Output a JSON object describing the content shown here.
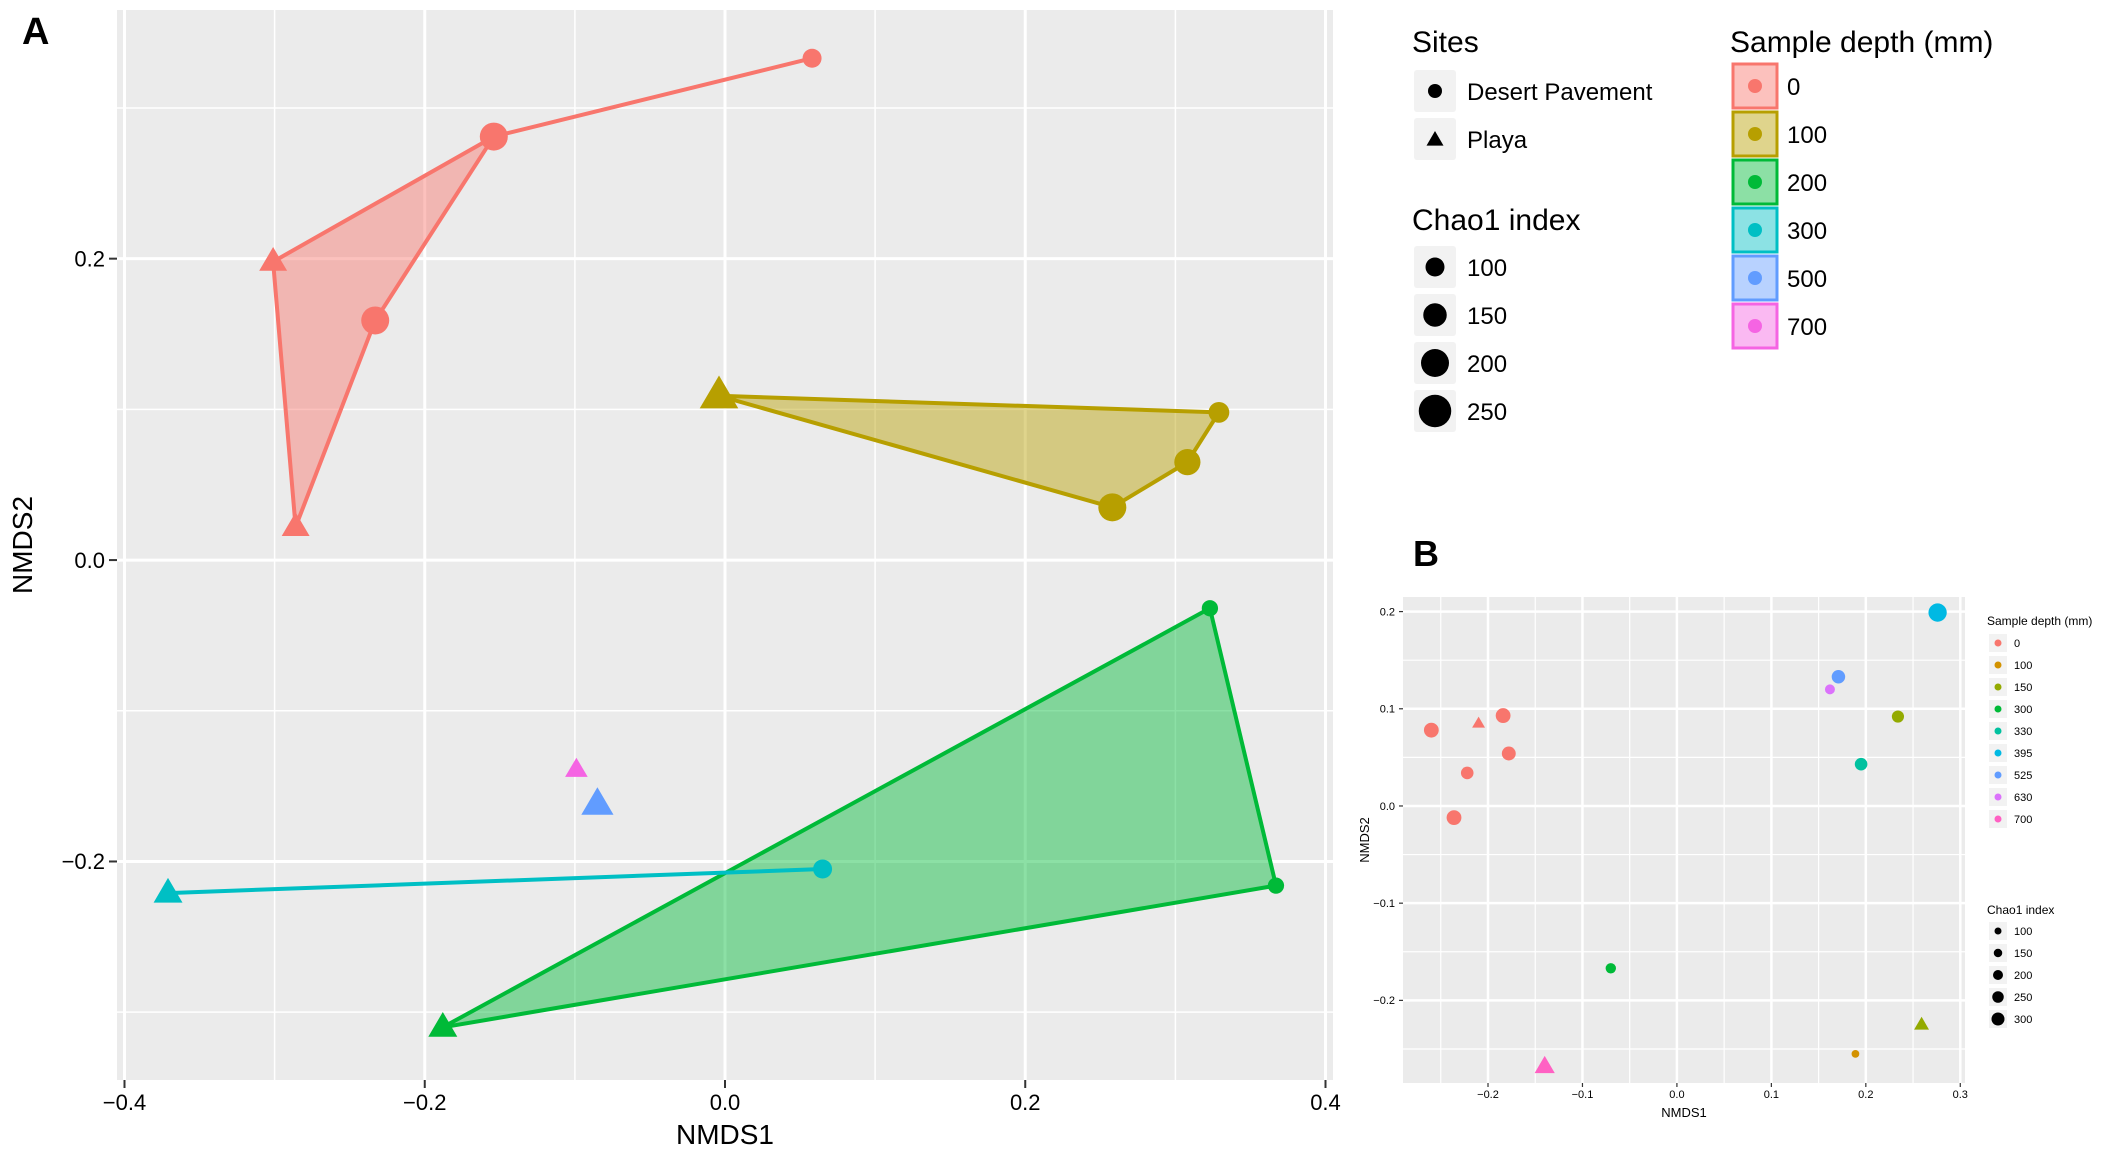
{
  "panel_a": {
    "letter": "A",
    "legend": {
      "sites_title": "Sites",
      "sites": [
        {
          "label": "Desert Pavement",
          "shape": "circle"
        },
        {
          "label": "Playa",
          "shape": "triangle"
        }
      ],
      "chao_title": "Chao1 index",
      "chao": [
        {
          "label": "100",
          "value": 100
        },
        {
          "label": "150",
          "value": 150
        },
        {
          "label": "200",
          "value": 200
        },
        {
          "label": "250",
          "value": 250
        }
      ],
      "depth_title": "Sample depth (mm)",
      "depths": [
        {
          "label": "0",
          "color": "#F8766D"
        },
        {
          "label": "100",
          "color": "#B79F00"
        },
        {
          "label": "200",
          "color": "#00BA38"
        },
        {
          "label": "300",
          "color": "#00BFC4"
        },
        {
          "label": "500",
          "color": "#619CFF"
        },
        {
          "label": "700",
          "color": "#F564E3"
        }
      ]
    }
  },
  "panel_b": {
    "letter": "B",
    "legend": {
      "depth_title": "Sample depth (mm)",
      "depths": [
        {
          "label": "0",
          "color": "#F8766D"
        },
        {
          "label": "100",
          "color": "#D39200"
        },
        {
          "label": "150",
          "color": "#93AA00"
        },
        {
          "label": "300",
          "color": "#00BA38"
        },
        {
          "label": "330",
          "color": "#00C19F"
        },
        {
          "label": "395",
          "color": "#00B9E3"
        },
        {
          "label": "525",
          "color": "#619CFF"
        },
        {
          "label": "630",
          "color": "#DB72FB"
        },
        {
          "label": "700",
          "color": "#FF61C3"
        }
      ],
      "chao_title": "Chao1 index",
      "chao": [
        {
          "label": "100",
          "value": 100
        },
        {
          "label": "150",
          "value": 150
        },
        {
          "label": "200",
          "value": 200
        },
        {
          "label": "250",
          "value": 250
        },
        {
          "label": "300",
          "value": 300
        }
      ]
    }
  },
  "chart_data": [
    {
      "panel": "A",
      "type": "scatter",
      "xlabel": "NMDS1",
      "ylabel": "NMDS2",
      "xlim": [
        -0.405,
        0.405
      ],
      "ylim": [
        -0.345,
        0.365
      ],
      "xticks": [
        -0.4,
        -0.2,
        0.0,
        0.2,
        0.4
      ],
      "xtick_labels": [
        "−0.4",
        "−0.2",
        "0.0",
        "0.2",
        "0.4"
      ],
      "yticks": [
        -0.2,
        0.0,
        0.2
      ],
      "ytick_labels": [
        "−0.2",
        "0.0",
        "0.2"
      ],
      "hulls": [
        {
          "depth": "0",
          "color": "#F8766D",
          "filled": true,
          "points": [
            [
              0.058,
              0.333
            ],
            [
              -0.154,
              0.281
            ],
            [
              -0.301,
              0.198
            ],
            [
              -0.286,
              0.022
            ],
            [
              -0.233,
              0.159
            ],
            [
              -0.154,
              0.281
            ]
          ]
        },
        {
          "depth": "100",
          "color": "#B79F00",
          "filled": true,
          "points": [
            [
              -0.004,
              0.109
            ],
            [
              0.329,
              0.098
            ],
            [
              0.308,
              0.065
            ],
            [
              0.258,
              0.035
            ]
          ]
        },
        {
          "depth": "200",
          "color": "#00BA38",
          "filled": true,
          "points": [
            [
              0.323,
              -0.032
            ],
            [
              0.367,
              -0.216
            ],
            [
              -0.188,
              -0.31
            ]
          ]
        },
        {
          "depth": "300",
          "color": "#00BFC4",
          "filled": false,
          "points": [
            [
              -0.371,
              -0.221
            ],
            [
              0.065,
              -0.205
            ]
          ]
        }
      ],
      "points": [
        {
          "x": 0.058,
          "y": 0.333,
          "depth": "0",
          "site": "Desert Pavement",
          "chao1": 100
        },
        {
          "x": -0.154,
          "y": 0.281,
          "depth": "0",
          "site": "Desert Pavement",
          "chao1": 200
        },
        {
          "x": -0.233,
          "y": 0.159,
          "depth": "0",
          "site": "Desert Pavement",
          "chao1": 200
        },
        {
          "x": -0.301,
          "y": 0.198,
          "depth": "0",
          "site": "Playa",
          "chao1": 150
        },
        {
          "x": -0.286,
          "y": 0.022,
          "depth": "0",
          "site": "Playa",
          "chao1": 150
        },
        {
          "x": -0.004,
          "y": 0.109,
          "depth": "100",
          "site": "Playa",
          "chao1": 250
        },
        {
          "x": 0.329,
          "y": 0.098,
          "depth": "100",
          "site": "Desert Pavement",
          "chao1": 120
        },
        {
          "x": 0.308,
          "y": 0.065,
          "depth": "100",
          "site": "Desert Pavement",
          "chao1": 180
        },
        {
          "x": 0.258,
          "y": 0.035,
          "depth": "100",
          "site": "Desert Pavement",
          "chao1": 200
        },
        {
          "x": 0.323,
          "y": -0.032,
          "depth": "200",
          "site": "Desert Pavement",
          "chao1": 70
        },
        {
          "x": 0.367,
          "y": -0.216,
          "depth": "200",
          "site": "Desert Pavement",
          "chao1": 70
        },
        {
          "x": -0.188,
          "y": -0.31,
          "depth": "200",
          "site": "Playa",
          "chao1": 160
        },
        {
          "x": -0.371,
          "y": -0.221,
          "depth": "300",
          "site": "Playa",
          "chao1": 160
        },
        {
          "x": 0.065,
          "y": -0.205,
          "depth": "300",
          "site": "Desert Pavement",
          "chao1": 100
        },
        {
          "x": -0.085,
          "y": -0.162,
          "depth": "500",
          "site": "Playa",
          "chao1": 190
        },
        {
          "x": -0.099,
          "y": -0.139,
          "depth": "700",
          "site": "Playa",
          "chao1": 100
        }
      ]
    },
    {
      "panel": "B",
      "type": "scatter",
      "xlabel": "NMDS1",
      "ylabel": "NMDS2",
      "xlim": [
        -0.29,
        0.305
      ],
      "ylim": [
        -0.285,
        0.215
      ],
      "xticks": [
        -0.2,
        -0.1,
        0.0,
        0.1,
        0.2,
        0.3
      ],
      "xtick_labels": [
        "−0.2",
        "−0.1",
        "0.0",
        "0.1",
        "0.2",
        "0.3"
      ],
      "yticks": [
        -0.2,
        -0.1,
        0.0,
        0.1,
        0.2
      ],
      "ytick_labels": [
        "−0.2",
        "−0.1",
        "0.0",
        "0.1",
        "0.2"
      ],
      "points": [
        {
          "x": -0.26,
          "y": 0.078,
          "depth": "0",
          "site": "Desert Pavement",
          "chao1": 200
        },
        {
          "x": -0.236,
          "y": -0.012,
          "depth": "0",
          "site": "Desert Pavement",
          "chao1": 200
        },
        {
          "x": -0.222,
          "y": 0.034,
          "depth": "0",
          "site": "Desert Pavement",
          "chao1": 150
        },
        {
          "x": -0.184,
          "y": 0.093,
          "depth": "0",
          "site": "Desert Pavement",
          "chao1": 200
        },
        {
          "x": -0.178,
          "y": 0.054,
          "depth": "0",
          "site": "Desert Pavement",
          "chao1": 180
        },
        {
          "x": -0.21,
          "y": 0.085,
          "depth": "0",
          "site": "Playa",
          "chao1": 110
        },
        {
          "x": -0.07,
          "y": -0.167,
          "depth": "300",
          "site": "Desert Pavement",
          "chao1": 100
        },
        {
          "x": -0.14,
          "y": -0.268,
          "depth": "700",
          "site": "Playa",
          "chao1": 250
        },
        {
          "x": 0.162,
          "y": 0.12,
          "depth": "630",
          "site": "Desert Pavement",
          "chao1": 90
        },
        {
          "x": 0.171,
          "y": 0.133,
          "depth": "525",
          "site": "Desert Pavement",
          "chao1": 170
        },
        {
          "x": 0.195,
          "y": 0.043,
          "depth": "330",
          "site": "Desert Pavement",
          "chao1": 150
        },
        {
          "x": 0.234,
          "y": 0.092,
          "depth": "150",
          "site": "Desert Pavement",
          "chao1": 140
        },
        {
          "x": 0.276,
          "y": 0.199,
          "depth": "395",
          "site": "Desert Pavement",
          "chao1": 280
        },
        {
          "x": 0.189,
          "y": -0.255,
          "depth": "100",
          "site": "Desert Pavement",
          "chao1": 40
        },
        {
          "x": 0.259,
          "y": -0.225,
          "depth": "150",
          "site": "Playa",
          "chao1": 150
        }
      ]
    }
  ]
}
